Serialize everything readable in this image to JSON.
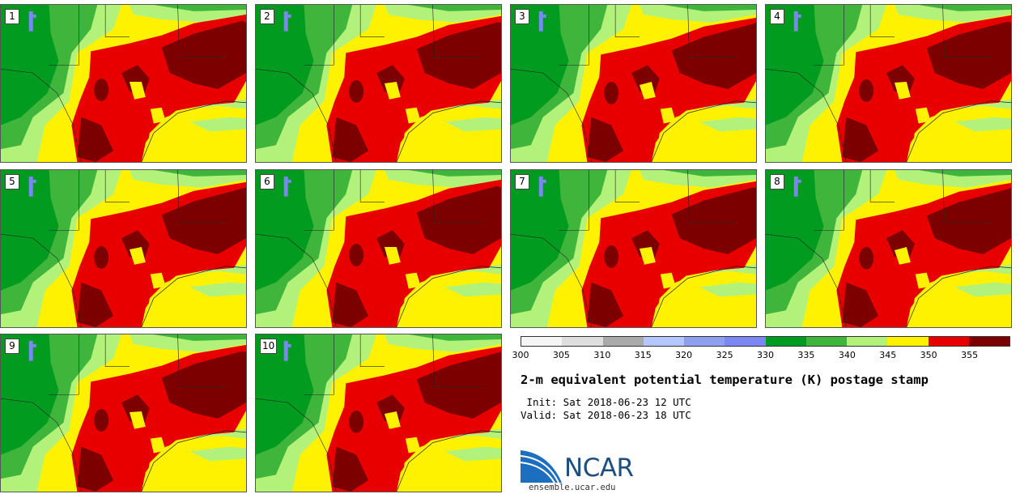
{
  "stamps": [
    {
      "label": "1"
    },
    {
      "label": "2"
    },
    {
      "label": "3"
    },
    {
      "label": "4"
    },
    {
      "label": "5"
    },
    {
      "label": "6"
    },
    {
      "label": "7"
    },
    {
      "label": "8"
    },
    {
      "label": "9"
    },
    {
      "label": "10"
    }
  ],
  "colorbar": {
    "ticks": [
      "300",
      "305",
      "310",
      "315",
      "320",
      "325",
      "330",
      "335",
      "340",
      "345",
      "350",
      "355"
    ],
    "colors": [
      "#f5f5f5",
      "#dedede",
      "#aaaaaa",
      "#b4c8ff",
      "#8da0f0",
      "#7b87f2",
      "#009b1f",
      "#3fb53c",
      "#b3f27a",
      "#fff200",
      "#e80000",
      "#7d0000"
    ]
  },
  "info": {
    "title": "2-m equivalent potential temperature (K) postage stamp",
    "init": " Init: Sat 2018-06-23 12 UTC",
    "valid": "Valid: Sat 2018-06-23 18 UTC"
  },
  "logo": {
    "name": "NCAR",
    "url": "ensemble.ucar.edu"
  },
  "colors": {
    "green_dark": "#009b1f",
    "green_mid": "#3fb53c",
    "green_light": "#b3f27a",
    "yellow": "#fff200",
    "red": "#e80000",
    "dark_red": "#7d0000",
    "lake_blue": "#7b87f2"
  }
}
